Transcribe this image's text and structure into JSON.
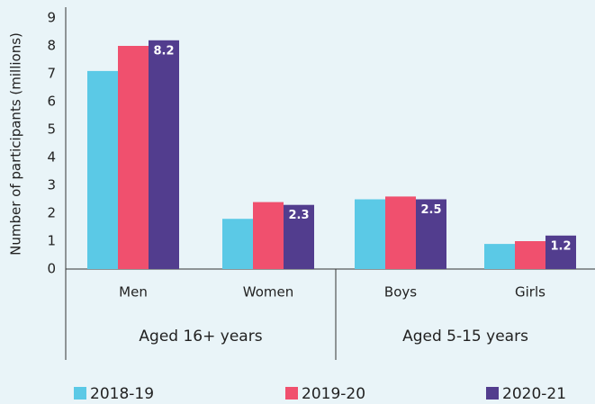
{
  "chart_data": {
    "type": "bar",
    "y_label": "Number of participants (millions)",
    "categories": [
      "Men",
      "Women",
      "Boys",
      "Girls"
    ],
    "group_labels": [
      "Aged 16+ years",
      "Aged 5-15 years"
    ],
    "series": [
      {
        "name": "2018-19",
        "color": "#5bc9e6",
        "values": [
          7.1,
          1.8,
          2.5,
          0.9
        ]
      },
      {
        "name": "2019-20",
        "color": "#f0506e",
        "values": [
          8.0,
          2.4,
          2.6,
          1.0
        ]
      },
      {
        "name": "2020-21",
        "color": "#523d8e",
        "values": [
          8.2,
          2.3,
          2.5,
          1.2
        ],
        "show_labels": true
      }
    ],
    "ylim": [
      0,
      9
    ],
    "yticks": [
      0,
      1,
      2,
      3,
      4,
      5,
      6,
      7,
      8,
      9
    ],
    "grid": false
  }
}
